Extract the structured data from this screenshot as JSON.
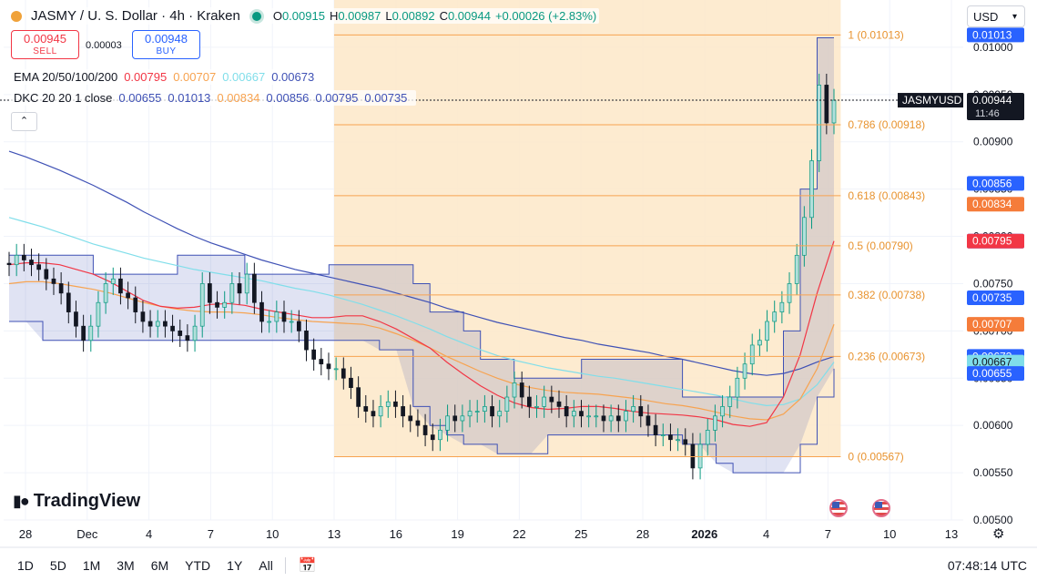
{
  "symbol": {
    "title": "JASMY / U. S. Dollar · 4h · Kraken",
    "ohlc": [
      {
        "k": "O",
        "v": "0.00915"
      },
      {
        "k": "H",
        "v": "0.00987"
      },
      {
        "k": "L",
        "v": "0.00892"
      },
      {
        "k": "C",
        "v": "0.00944"
      }
    ],
    "change": "+0.00026 (+2.83%)"
  },
  "trade": {
    "sell_price": "0.00945",
    "sell_label": "SELL",
    "spread": "0.00003",
    "buy_price": "0.00948",
    "buy_label": "BUY"
  },
  "indicators": {
    "ema": {
      "label": "EMA 20/50/100/200",
      "values": [
        "0.00795",
        "0.00707",
        "0.00667",
        "0.00673"
      ],
      "colors": [
        "#f23645",
        "#f7a350",
        "#80deea",
        "#3f51b5"
      ]
    },
    "dkc": {
      "label": "DKC 20 20 1 close",
      "values": [
        "0.00655",
        "0.01013",
        "0.00834",
        "0.00856",
        "0.00795",
        "0.00735"
      ],
      "colors": [
        "#3f51b5",
        "#3f51b5",
        "#f7a350",
        "#3f51b5",
        "#3f51b5",
        "#3f51b5"
      ]
    }
  },
  "currency": "USD",
  "brand": "TradingView",
  "timeframes": [
    "1D",
    "5D",
    "1M",
    "3M",
    "6M",
    "YTD",
    "1Y",
    "All"
  ],
  "clock": "07:48:14 UTC",
  "colors": {
    "up": "#089981",
    "down": "#f23645",
    "fib": "#f7a350",
    "channel": "#3f51b5",
    "accent": "#2962ff"
  },
  "chart_data": {
    "type": "candlestick",
    "symbol_label": "JASMYUSD",
    "last_price": "0.00944",
    "countdown": "11:46",
    "ylim": [
      0.005,
      0.0105
    ],
    "y_ticks": [
      "0.01000",
      "0.00950",
      "0.00900",
      "0.00850",
      "0.00800",
      "0.00750",
      "0.00700",
      "0.00650",
      "0.00600",
      "0.00550",
      "0.00500"
    ],
    "x_ticks": [
      "28",
      "Dec",
      "4",
      "7",
      "10",
      "13",
      "16",
      "19",
      "22",
      "25",
      "28",
      "2026",
      "4",
      "7",
      "10",
      "13"
    ],
    "fib_levels": [
      {
        "ratio": "1",
        "price": "0.01013"
      },
      {
        "ratio": "0.786",
        "price": "0.00918"
      },
      {
        "ratio": "0.618",
        "price": "0.00843"
      },
      {
        "ratio": "0.5",
        "price": "0.00790"
      },
      {
        "ratio": "0.382",
        "price": "0.00738"
      },
      {
        "ratio": "0.236",
        "price": "0.00673"
      },
      {
        "ratio": "0",
        "price": "0.00567"
      }
    ],
    "price_tags": [
      {
        "value": "0.01013",
        "color": "#2962ff"
      },
      {
        "value": "0.00856",
        "color": "#2962ff"
      },
      {
        "value": "0.00834",
        "color": "#f57c3a"
      },
      {
        "value": "0.00795",
        "color": "#2962ff"
      },
      {
        "value": "0.00795",
        "color": "#f23645"
      },
      {
        "value": "0.00735",
        "color": "#2962ff"
      },
      {
        "value": "0.00707",
        "color": "#f57c3a"
      },
      {
        "value": "0.00673",
        "color": "#2962ff"
      },
      {
        "value": "0.00667",
        "color": "#80deea"
      },
      {
        "value": "0.00655",
        "color": "#2962ff"
      }
    ],
    "closes": [
      0.0077,
      0.0078,
      0.00775,
      0.0077,
      0.00765,
      0.00755,
      0.0075,
      0.0074,
      0.0072,
      0.00705,
      0.0069,
      0.00705,
      0.0073,
      0.0075,
      0.00755,
      0.0074,
      0.00735,
      0.0072,
      0.0071,
      0.00705,
      0.0071,
      0.00705,
      0.007,
      0.00695,
      0.0069,
      0.00705,
      0.0075,
      0.0073,
      0.00725,
      0.0073,
      0.0075,
      0.0074,
      0.0076,
      0.0073,
      0.0071,
      0.0071,
      0.0072,
      0.0071,
      0.0071,
      0.007,
      0.0068,
      0.0067,
      0.00665,
      0.0066,
      0.0066,
      0.0065,
      0.0064,
      0.0062,
      0.00615,
      0.0061,
      0.0062,
      0.00625,
      0.0062,
      0.0061,
      0.00605,
      0.006,
      0.0059,
      0.00585,
      0.00595,
      0.0061,
      0.00605,
      0.0061,
      0.00615,
      0.00615,
      0.0062,
      0.0061,
      0.00615,
      0.0063,
      0.00645,
      0.0063,
      0.0062,
      0.0062,
      0.0063,
      0.00625,
      0.0062,
      0.0061,
      0.00615,
      0.0061,
      0.0061,
      0.0061,
      0.00605,
      0.0061,
      0.00605,
      0.00615,
      0.0062,
      0.0061,
      0.006,
      0.0059,
      0.0059,
      0.00585,
      0.00585,
      0.0058,
      0.00555,
      0.0058,
      0.00595,
      0.0061,
      0.0062,
      0.0063,
      0.0065,
      0.00665,
      0.00685,
      0.0069,
      0.0071,
      0.0072,
      0.0073,
      0.0075,
      0.0078,
      0.0082,
      0.0088,
      0.0096,
      0.0092,
      0.00944
    ],
    "ema20": [
      0.0077,
      0.00772,
      0.00772,
      0.0077,
      0.00765,
      0.0076,
      0.00752,
      0.00742,
      0.00732,
      0.00726,
      0.00724,
      0.00725,
      0.00728,
      0.00729,
      0.00727,
      0.00723,
      0.0072,
      0.00717,
      0.00714,
      0.00714,
      0.00716,
      0.00716,
      0.0071,
      0.00702,
      0.00692,
      0.00682,
      0.00667,
      0.00654,
      0.00642,
      0.00632,
      0.00624,
      0.00619,
      0.00617,
      0.00618,
      0.0062,
      0.0062,
      0.00618,
      0.00615,
      0.00613,
      0.00612,
      0.00611,
      0.00609,
      0.00606,
      0.00601,
      0.00599,
      0.00603,
      0.0063,
      0.00675,
      0.0074,
      0.00795
    ],
    "ema50": [
      0.0075,
      0.00752,
      0.00752,
      0.0075,
      0.00747,
      0.00744,
      0.0074,
      0.00735,
      0.0073,
      0.00726,
      0.00723,
      0.00721,
      0.0072,
      0.0072,
      0.00719,
      0.00717,
      0.00714,
      0.00712,
      0.0071,
      0.00709,
      0.00708,
      0.00707,
      0.00703,
      0.00697,
      0.0069,
      0.00682,
      0.00673,
      0.00665,
      0.00657,
      0.0065,
      0.00644,
      0.0064,
      0.00637,
      0.00635,
      0.00634,
      0.00633,
      0.00631,
      0.00629,
      0.00626,
      0.00623,
      0.00621,
      0.00618,
      0.00614,
      0.0061,
      0.00607,
      0.00606,
      0.00612,
      0.00628,
      0.0066,
      0.00707
    ],
    "ema100": [
      0.0082,
      0.00815,
      0.0081,
      0.00804,
      0.00798,
      0.00792,
      0.00787,
      0.00782,
      0.00777,
      0.00773,
      0.00769,
      0.00765,
      0.00762,
      0.00759,
      0.00756,
      0.00753,
      0.00749,
      0.00745,
      0.00742,
      0.00738,
      0.00733,
      0.00728,
      0.00722,
      0.00716,
      0.00709,
      0.00702,
      0.00694,
      0.00687,
      0.0068,
      0.00674,
      0.00669,
      0.00665,
      0.00661,
      0.00658,
      0.00655,
      0.00652,
      0.0065,
      0.00647,
      0.00644,
      0.00641,
      0.00638,
      0.00635,
      0.00632,
      0.00628,
      0.00624,
      0.00621,
      0.00622,
      0.00628,
      0.00643,
      0.00667
    ],
    "ema200": [
      0.0089,
      0.00884,
      0.00877,
      0.0087,
      0.00862,
      0.00854,
      0.00845,
      0.00836,
      0.00826,
      0.00817,
      0.00808,
      0.008,
      0.00793,
      0.00787,
      0.00781,
      0.00775,
      0.0077,
      0.00765,
      0.00761,
      0.00757,
      0.00753,
      0.00749,
      0.00745,
      0.0074,
      0.00735,
      0.0073,
      0.00724,
      0.00719,
      0.00714,
      0.00709,
      0.00705,
      0.00701,
      0.00697,
      0.00693,
      0.0069,
      0.00686,
      0.00683,
      0.0068,
      0.00677,
      0.00673,
      0.0067,
      0.00666,
      0.00662,
      0.00658,
      0.00655,
      0.00653,
      0.00655,
      0.0066,
      0.00667,
      0.00673
    ],
    "dkc_upper": [
      0.0078,
      0.0078,
      0.0078,
      0.0078,
      0.0078,
      0.0076,
      0.0076,
      0.0076,
      0.0076,
      0.0076,
      0.0078,
      0.0078,
      0.0078,
      0.0078,
      0.0076,
      0.0076,
      0.0076,
      0.0076,
      0.0076,
      0.0077,
      0.0077,
      0.0077,
      0.0077,
      0.0077,
      0.0075,
      0.0072,
      0.0072,
      0.007,
      0.0067,
      0.0067,
      0.0065,
      0.0065,
      0.0065,
      0.0065,
      0.0067,
      0.0067,
      0.0067,
      0.0067,
      0.0067,
      0.0067,
      0.0063,
      0.0063,
      0.0063,
      0.0063,
      0.0063,
      0.0063,
      0.007,
      0.0085,
      0.0101,
      0.0101
    ],
    "dkc_lower": [
      0.0071,
      0.0071,
      0.0069,
      0.0069,
      0.0069,
      0.0069,
      0.0069,
      0.0069,
      0.0069,
      0.0069,
      0.0069,
      0.0069,
      0.0069,
      0.0069,
      0.0069,
      0.0069,
      0.0069,
      0.0069,
      0.0069,
      0.0069,
      0.0069,
      0.0069,
      0.0068,
      0.0068,
      0.0062,
      0.006,
      0.0059,
      0.0058,
      0.0058,
      0.0057,
      0.0057,
      0.0057,
      0.0059,
      0.0059,
      0.0059,
      0.0059,
      0.0059,
      0.0059,
      0.0059,
      0.0059,
      0.0058,
      0.0058,
      0.0056,
      0.0055,
      0.0055,
      0.0055,
      0.0055,
      0.0058,
      0.0063,
      0.0066
    ]
  }
}
